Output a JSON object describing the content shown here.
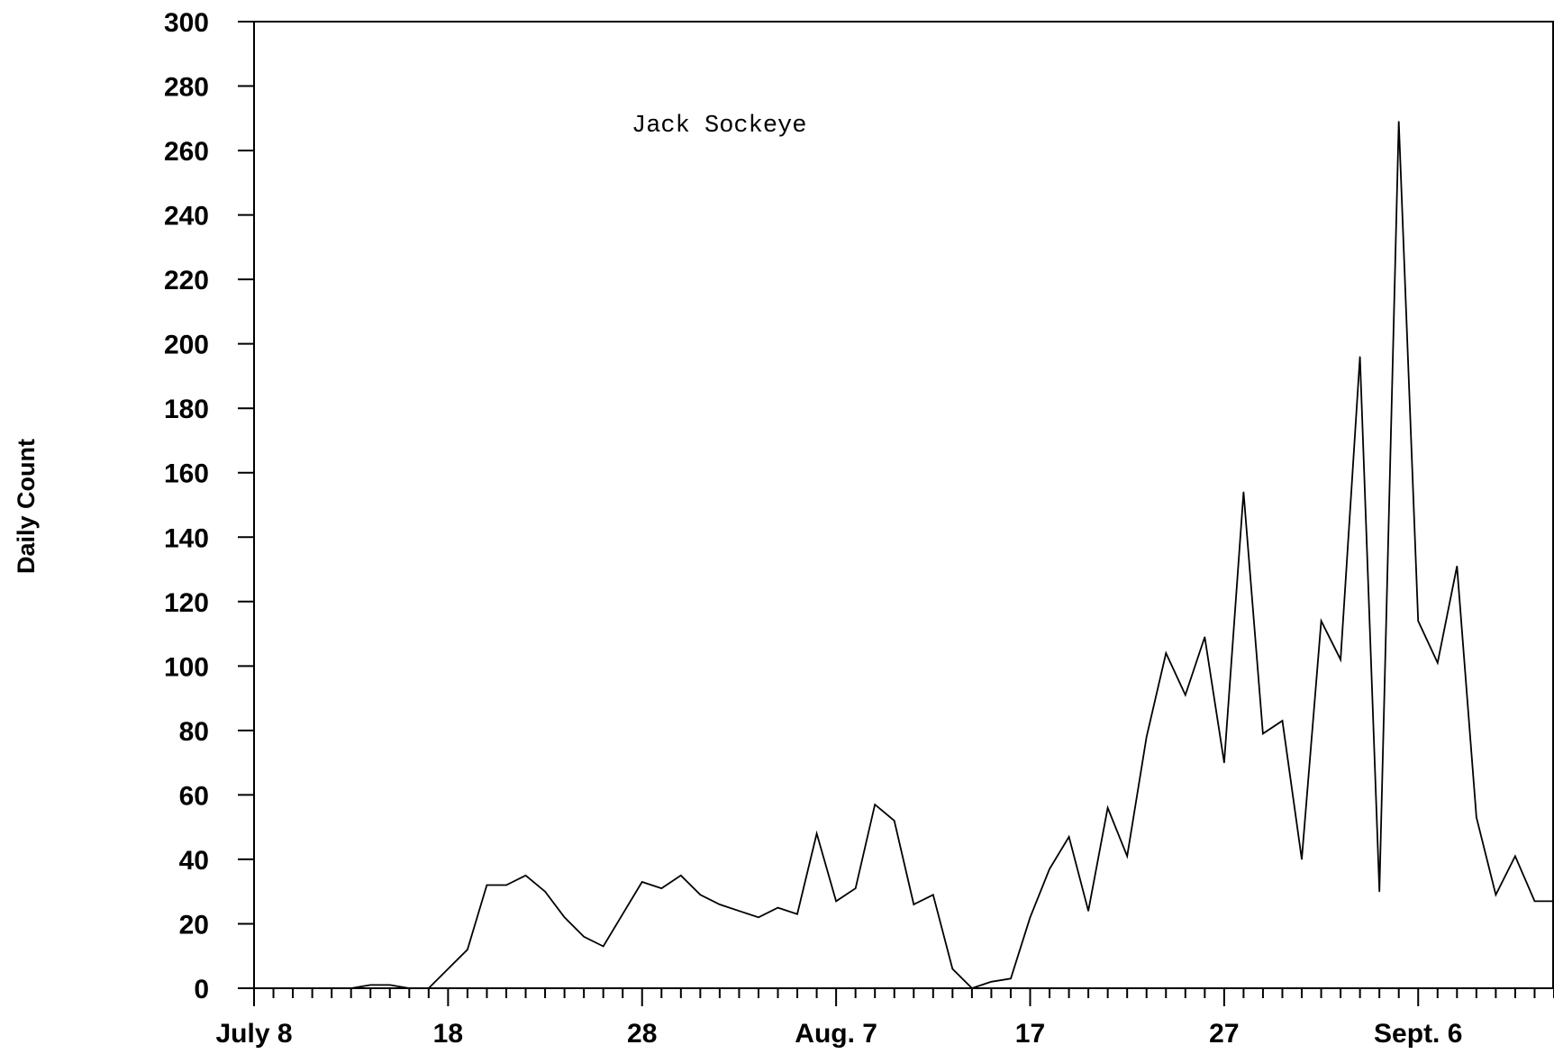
{
  "chart_data": {
    "type": "line",
    "title": "",
    "annotation": "Jack Sockeye",
    "xlabel": "",
    "ylabel": "Daily Count",
    "x_unit": "days since July 8",
    "x_ticks": [
      {
        "x": 0,
        "label": "July 8"
      },
      {
        "x": 10,
        "label": "18"
      },
      {
        "x": 20,
        "label": "28"
      },
      {
        "x": 30,
        "label": "Aug. 7"
      },
      {
        "x": 40,
        "label": "17"
      },
      {
        "x": 50,
        "label": "27"
      },
      {
        "x": 60,
        "label": "Sept. 6"
      }
    ],
    "y_ticks": [
      0,
      20,
      40,
      60,
      80,
      100,
      120,
      140,
      160,
      180,
      200,
      220,
      240,
      260,
      280,
      300
    ],
    "xlim": [
      0,
      67
    ],
    "ylim": [
      0,
      300
    ],
    "grid": false,
    "legend": "none",
    "line_color": "#000000",
    "series": [
      {
        "x": [
          0,
          1,
          2,
          3,
          4,
          5,
          6,
          7,
          8,
          9,
          10,
          11,
          12,
          13,
          14,
          15,
          16,
          17,
          18,
          19,
          20,
          21,
          22,
          23,
          24,
          25,
          26,
          27,
          28,
          29,
          30,
          31,
          32,
          33,
          34,
          35,
          36,
          37,
          38,
          39,
          40,
          41,
          42,
          43,
          44,
          45,
          46,
          47,
          48,
          49,
          50,
          51,
          52,
          53,
          54,
          55,
          56,
          57,
          58,
          59,
          60,
          61,
          62,
          63,
          64,
          65,
          66,
          67
        ],
        "values": [
          0,
          0,
          0,
          0,
          0,
          0,
          1,
          1,
          0,
          0,
          6,
          12,
          32,
          32,
          35,
          30,
          22,
          16,
          13,
          23,
          33,
          31,
          35,
          29,
          26,
          24,
          22,
          25,
          23,
          48,
          27,
          31,
          57,
          52,
          26,
          29,
          6,
          0,
          2,
          3,
          22,
          37,
          47,
          24,
          56,
          41,
          78,
          104,
          91,
          109,
          70,
          154,
          79,
          83,
          40,
          114,
          102,
          196,
          30,
          269,
          114,
          101,
          131,
          53,
          29,
          41,
          27,
          27
        ]
      }
    ]
  }
}
